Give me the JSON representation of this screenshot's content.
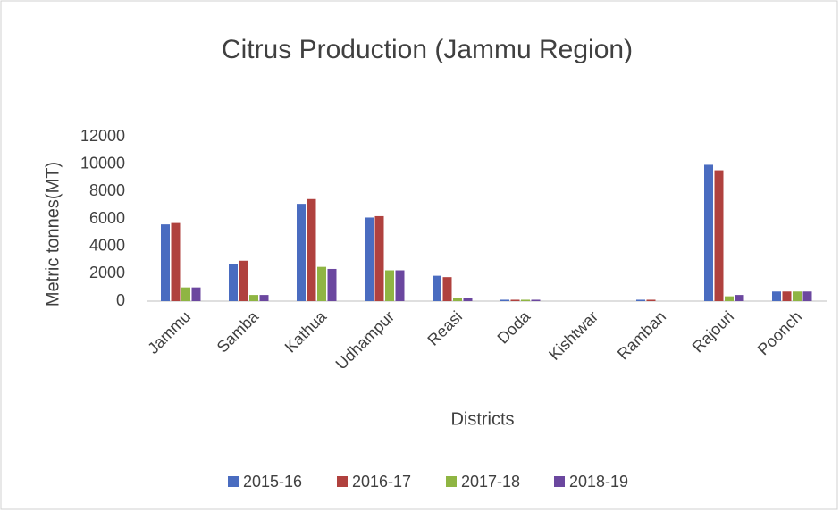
{
  "chart_data": {
    "type": "bar",
    "title": "Citrus Production (Jammu Region)",
    "x_label": "Districts",
    "y_label": "Metric tonnes(MT)",
    "categories": [
      "Jammu",
      "Samba",
      "Kathua",
      "Udhampur",
      "Reasi",
      "Doda",
      "Kishtwar",
      "Ramban",
      "Rajouri",
      "Poonch"
    ],
    "series": [
      {
        "name": "2015-16",
        "color": "#4a6cc0",
        "values": [
          5600,
          2700,
          7100,
          6100,
          1850,
          100,
          0,
          100,
          9950,
          700
        ]
      },
      {
        "name": "2016-17",
        "color": "#b0413e",
        "values": [
          5700,
          2950,
          7450,
          6200,
          1750,
          100,
          0,
          100,
          9550,
          700
        ]
      },
      {
        "name": "2017-18",
        "color": "#8fb543",
        "values": [
          1000,
          450,
          2500,
          2250,
          200,
          100,
          0,
          0,
          350,
          700
        ]
      },
      {
        "name": "2018-19",
        "color": "#6b479f",
        "values": [
          1000,
          450,
          2350,
          2250,
          200,
          100,
          0,
          0,
          450,
          700
        ]
      }
    ],
    "ylim": [
      0,
      12000
    ],
    "yticks": [
      0,
      2000,
      4000,
      6000,
      8000,
      10000,
      12000
    ],
    "grid": false,
    "legend": "bottom"
  }
}
